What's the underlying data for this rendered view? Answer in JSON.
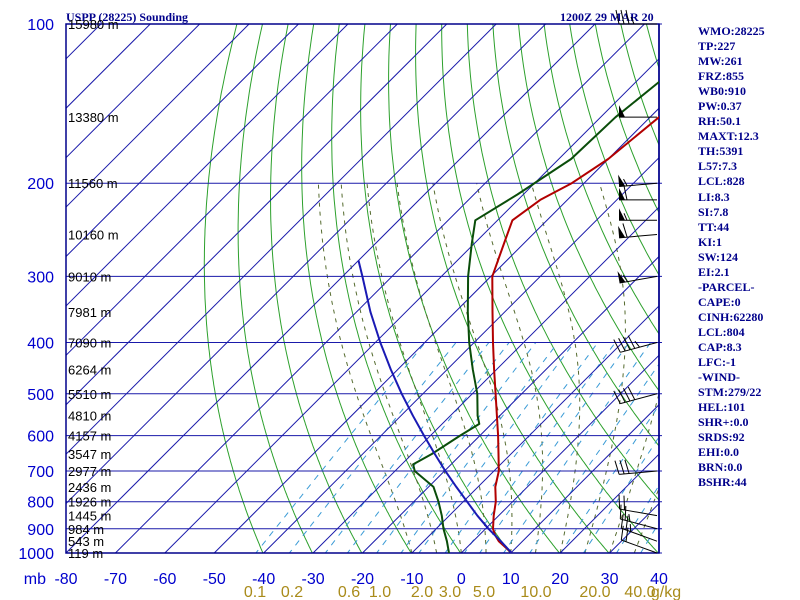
{
  "header": {
    "station_title": "USPP (28225) Sounding",
    "time_title": "1200Z 29 MAR 20"
  },
  "stats": [
    "WMO:28225",
    "TP:227",
    "MW:261",
    "FRZ:855",
    "WB0:910",
    "PW:0.37",
    "RH:50.1",
    "MAXT:12.3",
    "TH:5391",
    "L57:7.3",
    "LCL:828",
    "LI:8.3",
    "SI:7.8",
    "TT:44",
    "KI:1",
    "SW:124",
    "EI:2.1",
    "-PARCEL-",
    "CAPE:0",
    "CINH:62280",
    "LCL:804",
    "CAP:8.3",
    "LFC:-1",
    "-WIND-",
    "STM:279/22",
    "HEL:101",
    "SHR+:0.0",
    "SRDS:92",
    "EHI:0.0",
    "BRN:0.0",
    "BSHR:44"
  ],
  "colors": {
    "frame": "#00008b",
    "grid": "#1a1aaa",
    "dry_adiabat": "#2ca02c",
    "moist_adiabat": "#556b2f",
    "mixing_ratio": "#3a9bd6",
    "temperature": "#b20000",
    "dewpoint": "#0a4d0a",
    "parcel": "#1a1ab4",
    "wind": "#000000"
  },
  "chart_data": {
    "type": "line",
    "chart_kind": "skew-T log-p sounding",
    "y_axis": {
      "unit_label": "mb",
      "scale": "log",
      "range": [
        1000,
        100
      ],
      "ticks": [
        1000,
        900,
        800,
        700,
        600,
        500,
        400,
        300,
        200,
        100
      ]
    },
    "x_axis": {
      "unit": "°C",
      "range": [
        -80,
        40
      ],
      "ticks": [
        -80,
        -70,
        -60,
        -50,
        -40,
        -30,
        -20,
        -10,
        0,
        10,
        20,
        30,
        40
      ]
    },
    "mixing_ratio_labels": [
      "0.1",
      "0.2",
      "0.6",
      "1.0",
      "2.0",
      "3.0",
      "5.0",
      "10.0",
      "20.0",
      "40.0",
      "g/kg"
    ],
    "height_labels": [
      {
        "p": 1000,
        "label": "119 m"
      },
      {
        "p": 950,
        "label": "543 m"
      },
      {
        "p": 900,
        "label": "984 m"
      },
      {
        "p": 850,
        "label": "1445 m"
      },
      {
        "p": 800,
        "label": "1926 m"
      },
      {
        "p": 750,
        "label": "2436 m"
      },
      {
        "p": 700,
        "label": "2977 m"
      },
      {
        "p": 650,
        "label": "3547 m"
      },
      {
        "p": 600,
        "label": "4157 m"
      },
      {
        "p": 550,
        "label": "4810 m"
      },
      {
        "p": 500,
        "label": "5510 m"
      },
      {
        "p": 450,
        "label": "6264 m"
      },
      {
        "p": 400,
        "label": "7090 m"
      },
      {
        "p": 350,
        "label": "7981 m"
      },
      {
        "p": 300,
        "label": "9010 m"
      },
      {
        "p": 250,
        "label": "10160 m"
      },
      {
        "p": 200,
        "label": "11560 m"
      },
      {
        "p": 150,
        "label": "13380 m"
      },
      {
        "p": 100,
        "label": "15980 m"
      }
    ],
    "series": [
      {
        "key": "temperature",
        "points": [
          [
            1000,
            10.2
          ],
          [
            950,
            5.2
          ],
          [
            925,
            3.2
          ],
          [
            900,
            1.5
          ],
          [
            850,
            -1
          ],
          [
            800,
            -3.4
          ],
          [
            750,
            -6.5
          ],
          [
            700,
            -9
          ],
          [
            650,
            -12.5
          ],
          [
            600,
            -16.3
          ],
          [
            550,
            -20.6
          ],
          [
            500,
            -25.3
          ],
          [
            450,
            -30.5
          ],
          [
            400,
            -36.2
          ],
          [
            350,
            -42.5
          ],
          [
            300,
            -49.7
          ],
          [
            260,
            -54
          ],
          [
            235,
            -57
          ],
          [
            215,
            -55.5
          ],
          [
            200,
            -52.5
          ],
          [
            180,
            -50
          ],
          [
            150,
            -48.2
          ],
          [
            125,
            -45.8
          ],
          [
            100,
            -43.2
          ]
        ]
      },
      {
        "key": "dewpoint",
        "points": [
          [
            1000,
            -2.5
          ],
          [
            950,
            -5.3
          ],
          [
            900,
            -8.5
          ],
          [
            850,
            -11.5
          ],
          [
            800,
            -15
          ],
          [
            750,
            -19
          ],
          [
            700,
            -26
          ],
          [
            680,
            -27.7
          ],
          [
            650,
            -26
          ],
          [
            600,
            -24
          ],
          [
            570,
            -22.5
          ],
          [
            550,
            -24.5
          ],
          [
            500,
            -29
          ],
          [
            450,
            -34.8
          ],
          [
            400,
            -41
          ],
          [
            350,
            -47.5
          ],
          [
            300,
            -54.6
          ],
          [
            260,
            -60.5
          ],
          [
            235,
            -64.5
          ],
          [
            210,
            -61.2
          ],
          [
            180,
            -57.5
          ],
          [
            150,
            -57
          ],
          [
            125,
            -55
          ],
          [
            100,
            -53.5
          ]
        ]
      },
      {
        "key": "parcel",
        "points": [
          [
            1000,
            10.2
          ],
          [
            950,
            5.6
          ],
          [
            900,
            0.6
          ],
          [
            850,
            -4.3
          ],
          [
            800,
            -9.2
          ],
          [
            750,
            -14.4
          ],
          [
            700,
            -19.8
          ],
          [
            650,
            -25.4
          ],
          [
            600,
            -31.3
          ],
          [
            550,
            -37.6
          ],
          [
            500,
            -44.3
          ],
          [
            450,
            -51.4
          ],
          [
            400,
            -59
          ],
          [
            350,
            -67.2
          ],
          [
            300,
            -76
          ],
          [
            280,
            -80
          ]
        ]
      }
    ],
    "wind_barbs": [
      {
        "p": 1000,
        "dir": 290,
        "kt": 20
      },
      {
        "p": 950,
        "dir": 290,
        "kt": 25
      },
      {
        "p": 900,
        "dir": 285,
        "kt": 25
      },
      {
        "p": 850,
        "dir": 280,
        "kt": 20
      },
      {
        "p": 700,
        "dir": 265,
        "kt": 30
      },
      {
        "p": 500,
        "dir": 255,
        "kt": 40
      },
      {
        "p": 400,
        "dir": 255,
        "kt": 45
      },
      {
        "p": 300,
        "dir": 260,
        "kt": 55
      },
      {
        "p": 250,
        "dir": 265,
        "kt": 60
      },
      {
        "p": 235,
        "dir": 270,
        "kt": 55
      },
      {
        "p": 215,
        "dir": 270,
        "kt": 60
      },
      {
        "p": 200,
        "dir": 265,
        "kt": 55
      },
      {
        "p": 150,
        "dir": 270,
        "kt": 50
      },
      {
        "p": 100,
        "dir": 270,
        "kt": 35
      }
    ]
  }
}
